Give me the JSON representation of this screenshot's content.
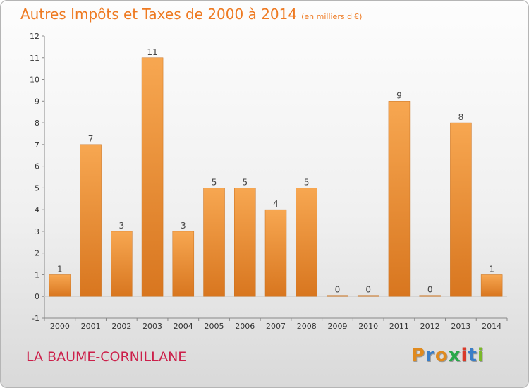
{
  "header": {
    "title": "Autres Impôts et Taxes de 2000 à 2014",
    "unit": "(en milliers d'€)"
  },
  "footer": {
    "place": "LA BAUME-CORNILLANE",
    "logo_letters": [
      "P",
      "r",
      "o",
      "x",
      "i",
      "t",
      "i"
    ],
    "logo_colors": [
      "#e08a1e",
      "#3a7ec8",
      "#e08a1e",
      "#2aa84a",
      "#d93a2a",
      "#3a7ec8",
      "#7ab82a"
    ]
  },
  "chart_data": {
    "type": "bar",
    "title": "Autres Impôts et Taxes de 2000 à 2014",
    "subtitle": "(en milliers d'€)",
    "categories": [
      "2000",
      "2001",
      "2002",
      "2003",
      "2004",
      "2005",
      "2006",
      "2007",
      "2008",
      "2009",
      "2010",
      "2011",
      "2012",
      "2013",
      "2014"
    ],
    "values": [
      1,
      7,
      3,
      11,
      3,
      5,
      5,
      4,
      5,
      0,
      0,
      9,
      0,
      8,
      1
    ],
    "ylim": [
      -1,
      12
    ],
    "yticks": [
      -1,
      0,
      1,
      2,
      3,
      4,
      5,
      6,
      7,
      8,
      9,
      10,
      11,
      12
    ],
    "grid": false,
    "bar_color": "#f39a3c",
    "bar_color_dark": "#d77a22"
  }
}
